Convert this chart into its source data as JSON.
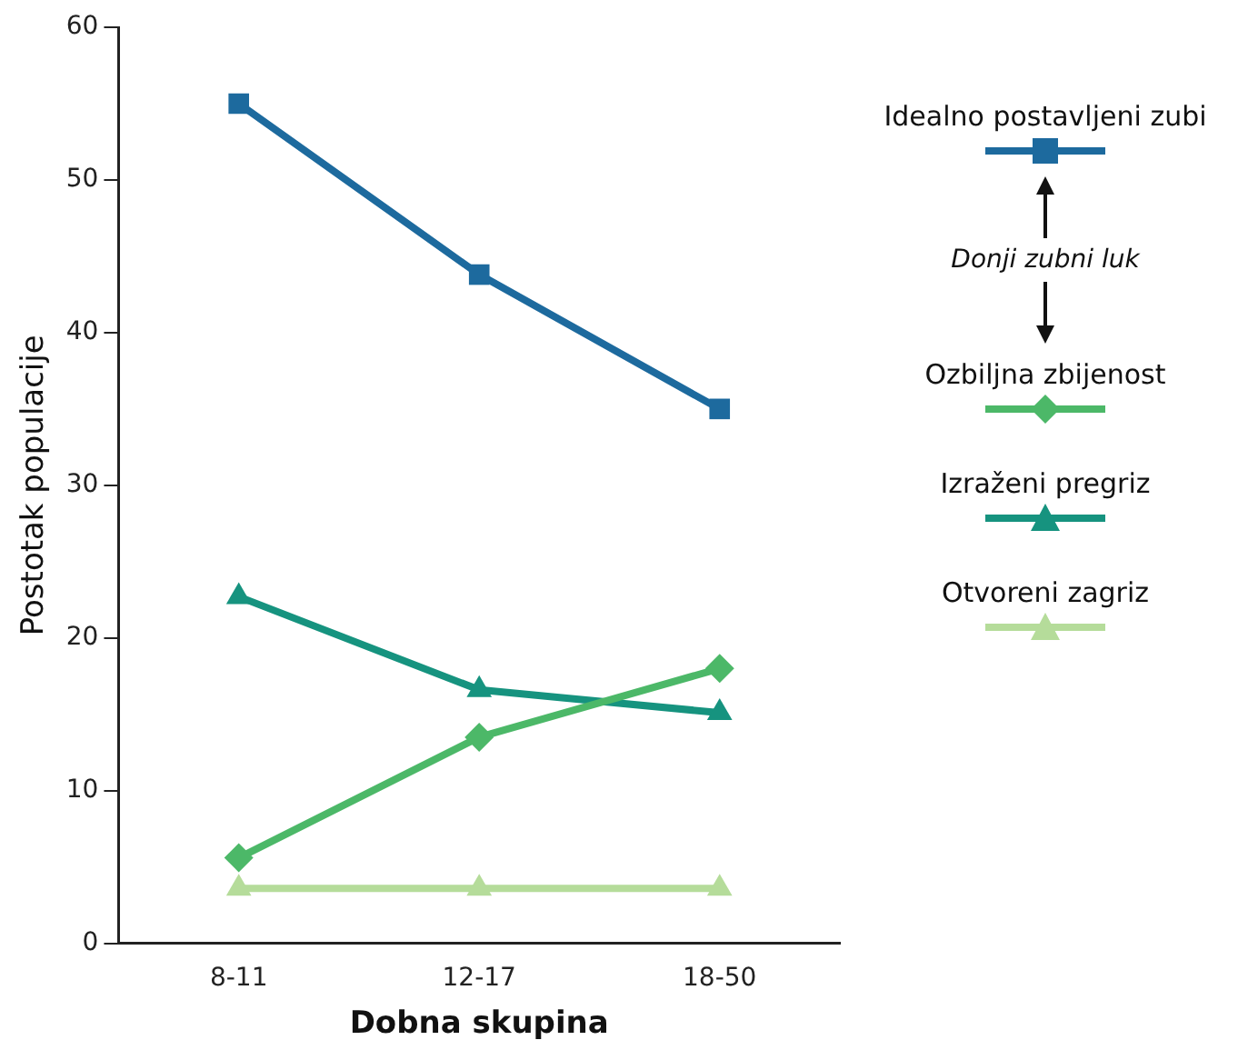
{
  "chart_data": {
    "type": "line",
    "xlabel": "Dobna skupina",
    "ylabel": "Postotak populacije",
    "categories": [
      "8-11",
      "12-17",
      "18-50"
    ],
    "series": [
      {
        "name": "Idealno postavljeni zubi",
        "color": "#1d6a9e",
        "marker": "square",
        "values": [
          55,
          43.8,
          35
        ]
      },
      {
        "name": "Ozbiljna zbijenost",
        "color": "#4cb868",
        "marker": "diamond",
        "values": [
          5.6,
          13.5,
          18
        ]
      },
      {
        "name": "Izraženi pregriz",
        "color": "#16937f",
        "marker": "triangle",
        "values": [
          22.7,
          16.6,
          15.1
        ]
      },
      {
        "name": "Otvoreni zagriz",
        "color": "#b5dc9a",
        "marker": "triangle",
        "values": [
          3.6,
          3.6,
          3.6
        ]
      }
    ],
    "ylim": [
      0,
      60
    ],
    "yticks": [
      0,
      10,
      20,
      30,
      40,
      50,
      60
    ],
    "grid": false,
    "legend": "right",
    "annotations": [
      "Donji zubni luk"
    ]
  }
}
